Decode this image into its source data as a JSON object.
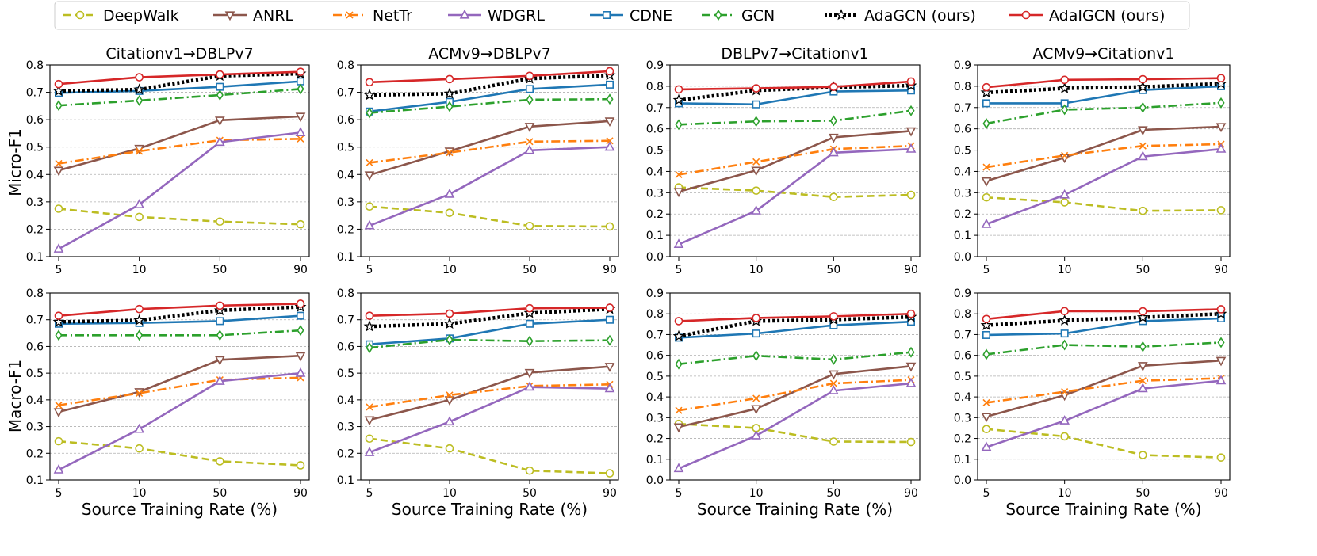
{
  "figure": {
    "row_labels": [
      "Micro-F1",
      "Macro-F1"
    ],
    "xlabel": "Source Training Rate (%)"
  },
  "legend": [
    {
      "name": "DeepWalk",
      "color": "#bcbd22",
      "dash": "dashed",
      "marker": "circle"
    },
    {
      "name": "ANRL",
      "color": "#8c564b",
      "dash": "solid",
      "marker": "tri-down"
    },
    {
      "name": "NetTr",
      "color": "#ff7f0e",
      "dash": "dashdot",
      "marker": "x"
    },
    {
      "name": "WDGRL",
      "color": "#9467bd",
      "dash": "solid",
      "marker": "tri-up"
    },
    {
      "name": "CDNE",
      "color": "#1f77b4",
      "dash": "solid",
      "marker": "square"
    },
    {
      "name": "GCN",
      "color": "#2ca02c",
      "dash": "dashdot",
      "marker": "diamond"
    },
    {
      "name": "AdaGCN (ours)",
      "color": "#000000",
      "dash": "dotted",
      "marker": "star"
    },
    {
      "name": "AdaIGCN (ours)",
      "color": "#d62728",
      "dash": "solid",
      "marker": "circle"
    }
  ],
  "chart_data": [
    {
      "type": "line",
      "title": "Citationv1→DBLPv7",
      "ylabel": "Micro-F1",
      "xlabel": "Source Training Rate (%)",
      "categories": [
        "5",
        "10",
        "50",
        "90"
      ],
      "ylim": [
        0.1,
        0.8
      ],
      "yticks": [
        "0.1",
        "0.2",
        "0.3",
        "0.4",
        "0.5",
        "0.6",
        "0.7",
        "0.8"
      ],
      "series": [
        {
          "name": "DeepWalk",
          "values": [
            0.275,
            0.245,
            0.228,
            0.218
          ]
        },
        {
          "name": "ANRL",
          "values": [
            0.415,
            0.495,
            0.598,
            0.612
          ]
        },
        {
          "name": "NetTr",
          "values": [
            0.44,
            0.485,
            0.525,
            0.53
          ]
        },
        {
          "name": "WDGRL",
          "values": [
            0.128,
            0.29,
            0.518,
            0.553
          ]
        },
        {
          "name": "CDNE",
          "values": [
            0.698,
            0.705,
            0.72,
            0.74
          ]
        },
        {
          "name": "GCN",
          "values": [
            0.652,
            0.67,
            0.69,
            0.712
          ]
        },
        {
          "name": "AdaGCN (ours)",
          "values": [
            0.705,
            0.71,
            0.76,
            0.768
          ]
        },
        {
          "name": "AdaIGCN (ours)",
          "values": [
            0.73,
            0.755,
            0.765,
            0.775
          ]
        }
      ]
    },
    {
      "type": "line",
      "title": "ACMv9→DBLPv7",
      "ylabel": "Micro-F1",
      "xlabel": "Source Training Rate (%)",
      "categories": [
        "5",
        "10",
        "50",
        "90"
      ],
      "ylim": [
        0.1,
        0.8
      ],
      "yticks": [
        "0.1",
        "0.2",
        "0.3",
        "0.4",
        "0.5",
        "0.6",
        "0.7",
        "0.8"
      ],
      "series": [
        {
          "name": "DeepWalk",
          "values": [
            0.283,
            0.26,
            0.212,
            0.21
          ]
        },
        {
          "name": "ANRL",
          "values": [
            0.398,
            0.485,
            0.575,
            0.595
          ]
        },
        {
          "name": "NetTr",
          "values": [
            0.443,
            0.48,
            0.52,
            0.523
          ]
        },
        {
          "name": "WDGRL",
          "values": [
            0.213,
            0.328,
            0.488,
            0.5
          ]
        },
        {
          "name": "CDNE",
          "values": [
            0.63,
            0.665,
            0.712,
            0.728
          ]
        },
        {
          "name": "GCN",
          "values": [
            0.625,
            0.648,
            0.673,
            0.675
          ]
        },
        {
          "name": "AdaGCN (ours)",
          "values": [
            0.69,
            0.695,
            0.75,
            0.762
          ]
        },
        {
          "name": "AdaIGCN (ours)",
          "values": [
            0.737,
            0.748,
            0.76,
            0.777
          ]
        }
      ]
    },
    {
      "type": "line",
      "title": "DBLPv7→Citationv1",
      "ylabel": "Micro-F1",
      "xlabel": "Source Training Rate (%)",
      "categories": [
        "5",
        "10",
        "50",
        "90"
      ],
      "ylim": [
        0.0,
        0.9
      ],
      "yticks": [
        "0.0",
        "0.1",
        "0.2",
        "0.3",
        "0.4",
        "0.5",
        "0.6",
        "0.7",
        "0.8",
        "0.9"
      ],
      "series": [
        {
          "name": "DeepWalk",
          "values": [
            0.325,
            0.31,
            0.28,
            0.29
          ]
        },
        {
          "name": "ANRL",
          "values": [
            0.305,
            0.405,
            0.56,
            0.59
          ]
        },
        {
          "name": "NetTr",
          "values": [
            0.385,
            0.445,
            0.505,
            0.52
          ]
        },
        {
          "name": "WDGRL",
          "values": [
            0.058,
            0.215,
            0.488,
            0.505
          ]
        },
        {
          "name": "CDNE",
          "values": [
            0.72,
            0.715,
            0.775,
            0.78
          ]
        },
        {
          "name": "GCN",
          "values": [
            0.62,
            0.635,
            0.638,
            0.685
          ]
        },
        {
          "name": "AdaGCN (ours)",
          "values": [
            0.735,
            0.78,
            0.795,
            0.803
          ]
        },
        {
          "name": "AdaIGCN (ours)",
          "values": [
            0.785,
            0.79,
            0.797,
            0.822
          ]
        }
      ]
    },
    {
      "type": "line",
      "title": "ACMv9→Citationv1",
      "ylabel": "Micro-F1",
      "xlabel": "Source Training Rate (%)",
      "categories": [
        "5",
        "10",
        "50",
        "90"
      ],
      "ylim": [
        0.0,
        0.9
      ],
      "yticks": [
        "0.0",
        "0.1",
        "0.2",
        "0.3",
        "0.4",
        "0.5",
        "0.6",
        "0.7",
        "0.8",
        "0.9"
      ],
      "series": [
        {
          "name": "DeepWalk",
          "values": [
            0.278,
            0.255,
            0.215,
            0.218
          ]
        },
        {
          "name": "ANRL",
          "values": [
            0.355,
            0.465,
            0.595,
            0.61
          ]
        },
        {
          "name": "NetTr",
          "values": [
            0.42,
            0.475,
            0.52,
            0.528
          ]
        },
        {
          "name": "WDGRL",
          "values": [
            0.152,
            0.29,
            0.47,
            0.505
          ]
        },
        {
          "name": "CDNE",
          "values": [
            0.72,
            0.72,
            0.782,
            0.8
          ]
        },
        {
          "name": "GCN",
          "values": [
            0.625,
            0.69,
            0.7,
            0.722
          ]
        },
        {
          "name": "AdaGCN (ours)",
          "values": [
            0.77,
            0.79,
            0.797,
            0.812
          ]
        },
        {
          "name": "AdaIGCN (ours)",
          "values": [
            0.795,
            0.83,
            0.833,
            0.838
          ]
        }
      ]
    },
    {
      "type": "line",
      "title": "",
      "ylabel": "Macro-F1",
      "xlabel": "Source Training Rate (%)",
      "categories": [
        "5",
        "10",
        "50",
        "90"
      ],
      "ylim": [
        0.1,
        0.8
      ],
      "yticks": [
        "0.1",
        "0.2",
        "0.3",
        "0.4",
        "0.5",
        "0.6",
        "0.7",
        "0.8"
      ],
      "series": [
        {
          "name": "DeepWalk",
          "values": [
            0.245,
            0.218,
            0.17,
            0.155
          ]
        },
        {
          "name": "ANRL",
          "values": [
            0.355,
            0.43,
            0.55,
            0.565
          ]
        },
        {
          "name": "NetTr",
          "values": [
            0.38,
            0.425,
            0.475,
            0.483
          ]
        },
        {
          "name": "WDGRL",
          "values": [
            0.138,
            0.29,
            0.47,
            0.5
          ]
        },
        {
          "name": "CDNE",
          "values": [
            0.685,
            0.688,
            0.695,
            0.715
          ]
        },
        {
          "name": "GCN",
          "values": [
            0.642,
            0.642,
            0.642,
            0.66
          ]
        },
        {
          "name": "AdaGCN (ours)",
          "values": [
            0.692,
            0.698,
            0.735,
            0.748
          ]
        },
        {
          "name": "AdaIGCN (ours)",
          "values": [
            0.715,
            0.74,
            0.753,
            0.76
          ]
        }
      ]
    },
    {
      "type": "line",
      "title": "",
      "ylabel": "Macro-F1",
      "xlabel": "Source Training Rate (%)",
      "categories": [
        "5",
        "10",
        "50",
        "90"
      ],
      "ylim": [
        0.1,
        0.8
      ],
      "yticks": [
        "0.1",
        "0.2",
        "0.3",
        "0.4",
        "0.5",
        "0.6",
        "0.7",
        "0.8"
      ],
      "series": [
        {
          "name": "DeepWalk",
          "values": [
            0.255,
            0.218,
            0.135,
            0.125
          ]
        },
        {
          "name": "ANRL",
          "values": [
            0.325,
            0.4,
            0.502,
            0.525
          ]
        },
        {
          "name": "NetTr",
          "values": [
            0.373,
            0.418,
            0.452,
            0.458
          ]
        },
        {
          "name": "WDGRL",
          "values": [
            0.203,
            0.318,
            0.448,
            0.442
          ]
        },
        {
          "name": "CDNE",
          "values": [
            0.608,
            0.63,
            0.685,
            0.7
          ]
        },
        {
          "name": "GCN",
          "values": [
            0.595,
            0.625,
            0.62,
            0.623
          ]
        },
        {
          "name": "AdaGCN (ours)",
          "values": [
            0.675,
            0.685,
            0.725,
            0.74
          ]
        },
        {
          "name": "AdaIGCN (ours)",
          "values": [
            0.715,
            0.723,
            0.743,
            0.745
          ]
        }
      ]
    },
    {
      "type": "line",
      "title": "",
      "ylabel": "Macro-F1",
      "xlabel": "Source Training Rate (%)",
      "categories": [
        "5",
        "10",
        "50",
        "90"
      ],
      "ylim": [
        0.0,
        0.9
      ],
      "yticks": [
        "0.0",
        "0.1",
        "0.2",
        "0.3",
        "0.4",
        "0.5",
        "0.6",
        "0.7",
        "0.8",
        "0.9"
      ],
      "series": [
        {
          "name": "DeepWalk",
          "values": [
            0.27,
            0.25,
            0.185,
            0.183
          ]
        },
        {
          "name": "ANRL",
          "values": [
            0.255,
            0.343,
            0.51,
            0.548
          ]
        },
        {
          "name": "NetTr",
          "values": [
            0.335,
            0.393,
            0.465,
            0.482
          ]
        },
        {
          "name": "WDGRL",
          "values": [
            0.055,
            0.213,
            0.43,
            0.465
          ]
        },
        {
          "name": "CDNE",
          "values": [
            0.685,
            0.705,
            0.745,
            0.762
          ]
        },
        {
          "name": "GCN",
          "values": [
            0.558,
            0.598,
            0.58,
            0.615
          ]
        },
        {
          "name": "AdaGCN (ours)",
          "values": [
            0.692,
            0.765,
            0.772,
            0.785
          ]
        },
        {
          "name": "AdaIGCN (ours)",
          "values": [
            0.765,
            0.78,
            0.788,
            0.8
          ]
        }
      ]
    },
    {
      "type": "line",
      "title": "",
      "ylabel": "Macro-F1",
      "xlabel": "Source Training Rate (%)",
      "categories": [
        "5",
        "10",
        "50",
        "90"
      ],
      "ylim": [
        0.0,
        0.9
      ],
      "yticks": [
        "0.0",
        "0.1",
        "0.2",
        "0.3",
        "0.4",
        "0.5",
        "0.6",
        "0.7",
        "0.8",
        "0.9"
      ],
      "series": [
        {
          "name": "DeepWalk",
          "values": [
            0.245,
            0.21,
            0.12,
            0.108
          ]
        },
        {
          "name": "ANRL",
          "values": [
            0.305,
            0.408,
            0.55,
            0.575
          ]
        },
        {
          "name": "NetTr",
          "values": [
            0.372,
            0.425,
            0.478,
            0.49
          ]
        },
        {
          "name": "WDGRL",
          "values": [
            0.158,
            0.285,
            0.44,
            0.478
          ]
        },
        {
          "name": "CDNE",
          "values": [
            0.698,
            0.705,
            0.765,
            0.778
          ]
        },
        {
          "name": "GCN",
          "values": [
            0.605,
            0.65,
            0.642,
            0.662
          ]
        },
        {
          "name": "AdaGCN (ours)",
          "values": [
            0.745,
            0.768,
            0.783,
            0.8
          ]
        },
        {
          "name": "AdaIGCN (ours)",
          "values": [
            0.775,
            0.813,
            0.812,
            0.822
          ]
        }
      ]
    }
  ]
}
